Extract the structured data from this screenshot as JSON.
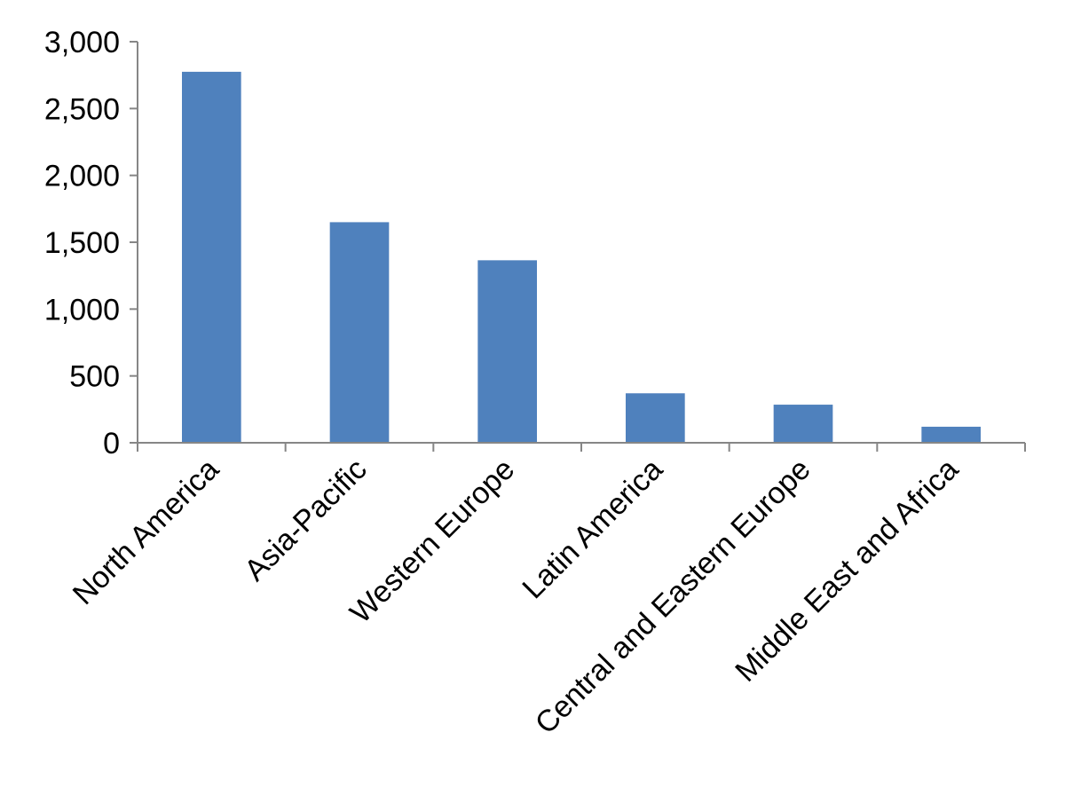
{
  "chart_data": {
    "type": "bar",
    "categories": [
      "North America",
      "Asia-Pacific",
      "Western Europe",
      "Latin America",
      "Central and Eastern Europe",
      "Middle East and Africa"
    ],
    "series": [
      {
        "values": [
          2775,
          1650,
          1365,
          370,
          285,
          120
        ]
      }
    ],
    "y_ticks": [
      "0",
      "500",
      "1,000",
      "1,500",
      "2,000",
      "2,500",
      "3,000"
    ],
    "ylim": [
      0,
      3000
    ],
    "grid": false,
    "legend": "none",
    "colors": {
      "bar": "#4f81bd",
      "axis": "#868686"
    }
  }
}
